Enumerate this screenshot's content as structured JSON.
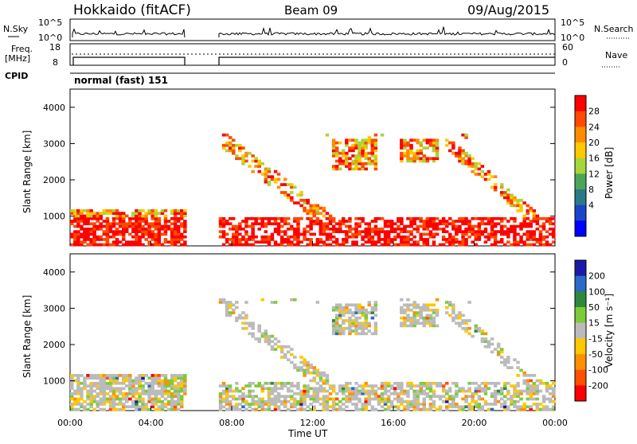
{
  "header": {
    "station": "Hokkaido (fitACF)",
    "beam": "Beam 09",
    "date": "09/Aug/2015"
  },
  "panels": {
    "nsky": {
      "left_label": "N.Sky",
      "ticks": [
        "10^5",
        "10^0"
      ],
      "right_label": "N.Search"
    },
    "freq": {
      "left_label_1": "Freq.",
      "left_label_2": "[MHz]",
      "ticks_left": [
        "18",
        "8"
      ],
      "ticks_right": [
        "60",
        "0"
      ],
      "right_label": "Nave"
    },
    "cpid": {
      "left_label": "CPID",
      "text": "normal (fast) 151"
    }
  },
  "chart_data": [
    {
      "type": "heatmap",
      "name": "power",
      "ylabel": "Slant Range [km]",
      "xlabel": "Time UT",
      "xlim": [
        0,
        24
      ],
      "ylim": [
        180,
        4500
      ],
      "yticks": [
        "1000",
        "2000",
        "3000",
        "4000"
      ],
      "xticks": [
        "00:00",
        "04:00",
        "08:00",
        "12:00",
        "16:00",
        "20:00",
        "00:00"
      ],
      "colorbar": {
        "label": "Power [dB]",
        "ticks": [
          "28",
          "24",
          "20",
          "16",
          "12",
          "8",
          "4"
        ],
        "colors": [
          "#ff0000",
          "#ff4a00",
          "#ff8c00",
          "#ffc800",
          "#a6d63a",
          "#4ca65a",
          "#2a7a8a",
          "#1a45c8",
          "#0000ff"
        ]
      },
      "gaps_hours": [
        [
          5.7,
          7.4
        ]
      ]
    },
    {
      "type": "heatmap",
      "name": "velocity",
      "ylabel": "Slant Range [km]",
      "xlabel": "Time UT",
      "xlim": [
        0,
        24
      ],
      "ylim": [
        180,
        4500
      ],
      "yticks": [
        "1000",
        "2000",
        "3000",
        "4000"
      ],
      "xticks": [
        "00:00",
        "04:00",
        "08:00",
        "12:00",
        "16:00",
        "20:00",
        "00:00"
      ],
      "colorbar": {
        "label": "Velocity [m s⁻¹]",
        "ticks": [
          "200",
          "100",
          "50",
          "15",
          "-15",
          "-50",
          "-100",
          "-200"
        ],
        "colors": [
          "#1a1aaa",
          "#2a6ac8",
          "#2e8a3a",
          "#7ccc3a",
          "#bbbbbb",
          "#ffc800",
          "#ff9000",
          "#ff5000",
          "#ff0000"
        ]
      },
      "gaps_hours": [
        [
          5.7,
          7.4
        ]
      ]
    }
  ]
}
